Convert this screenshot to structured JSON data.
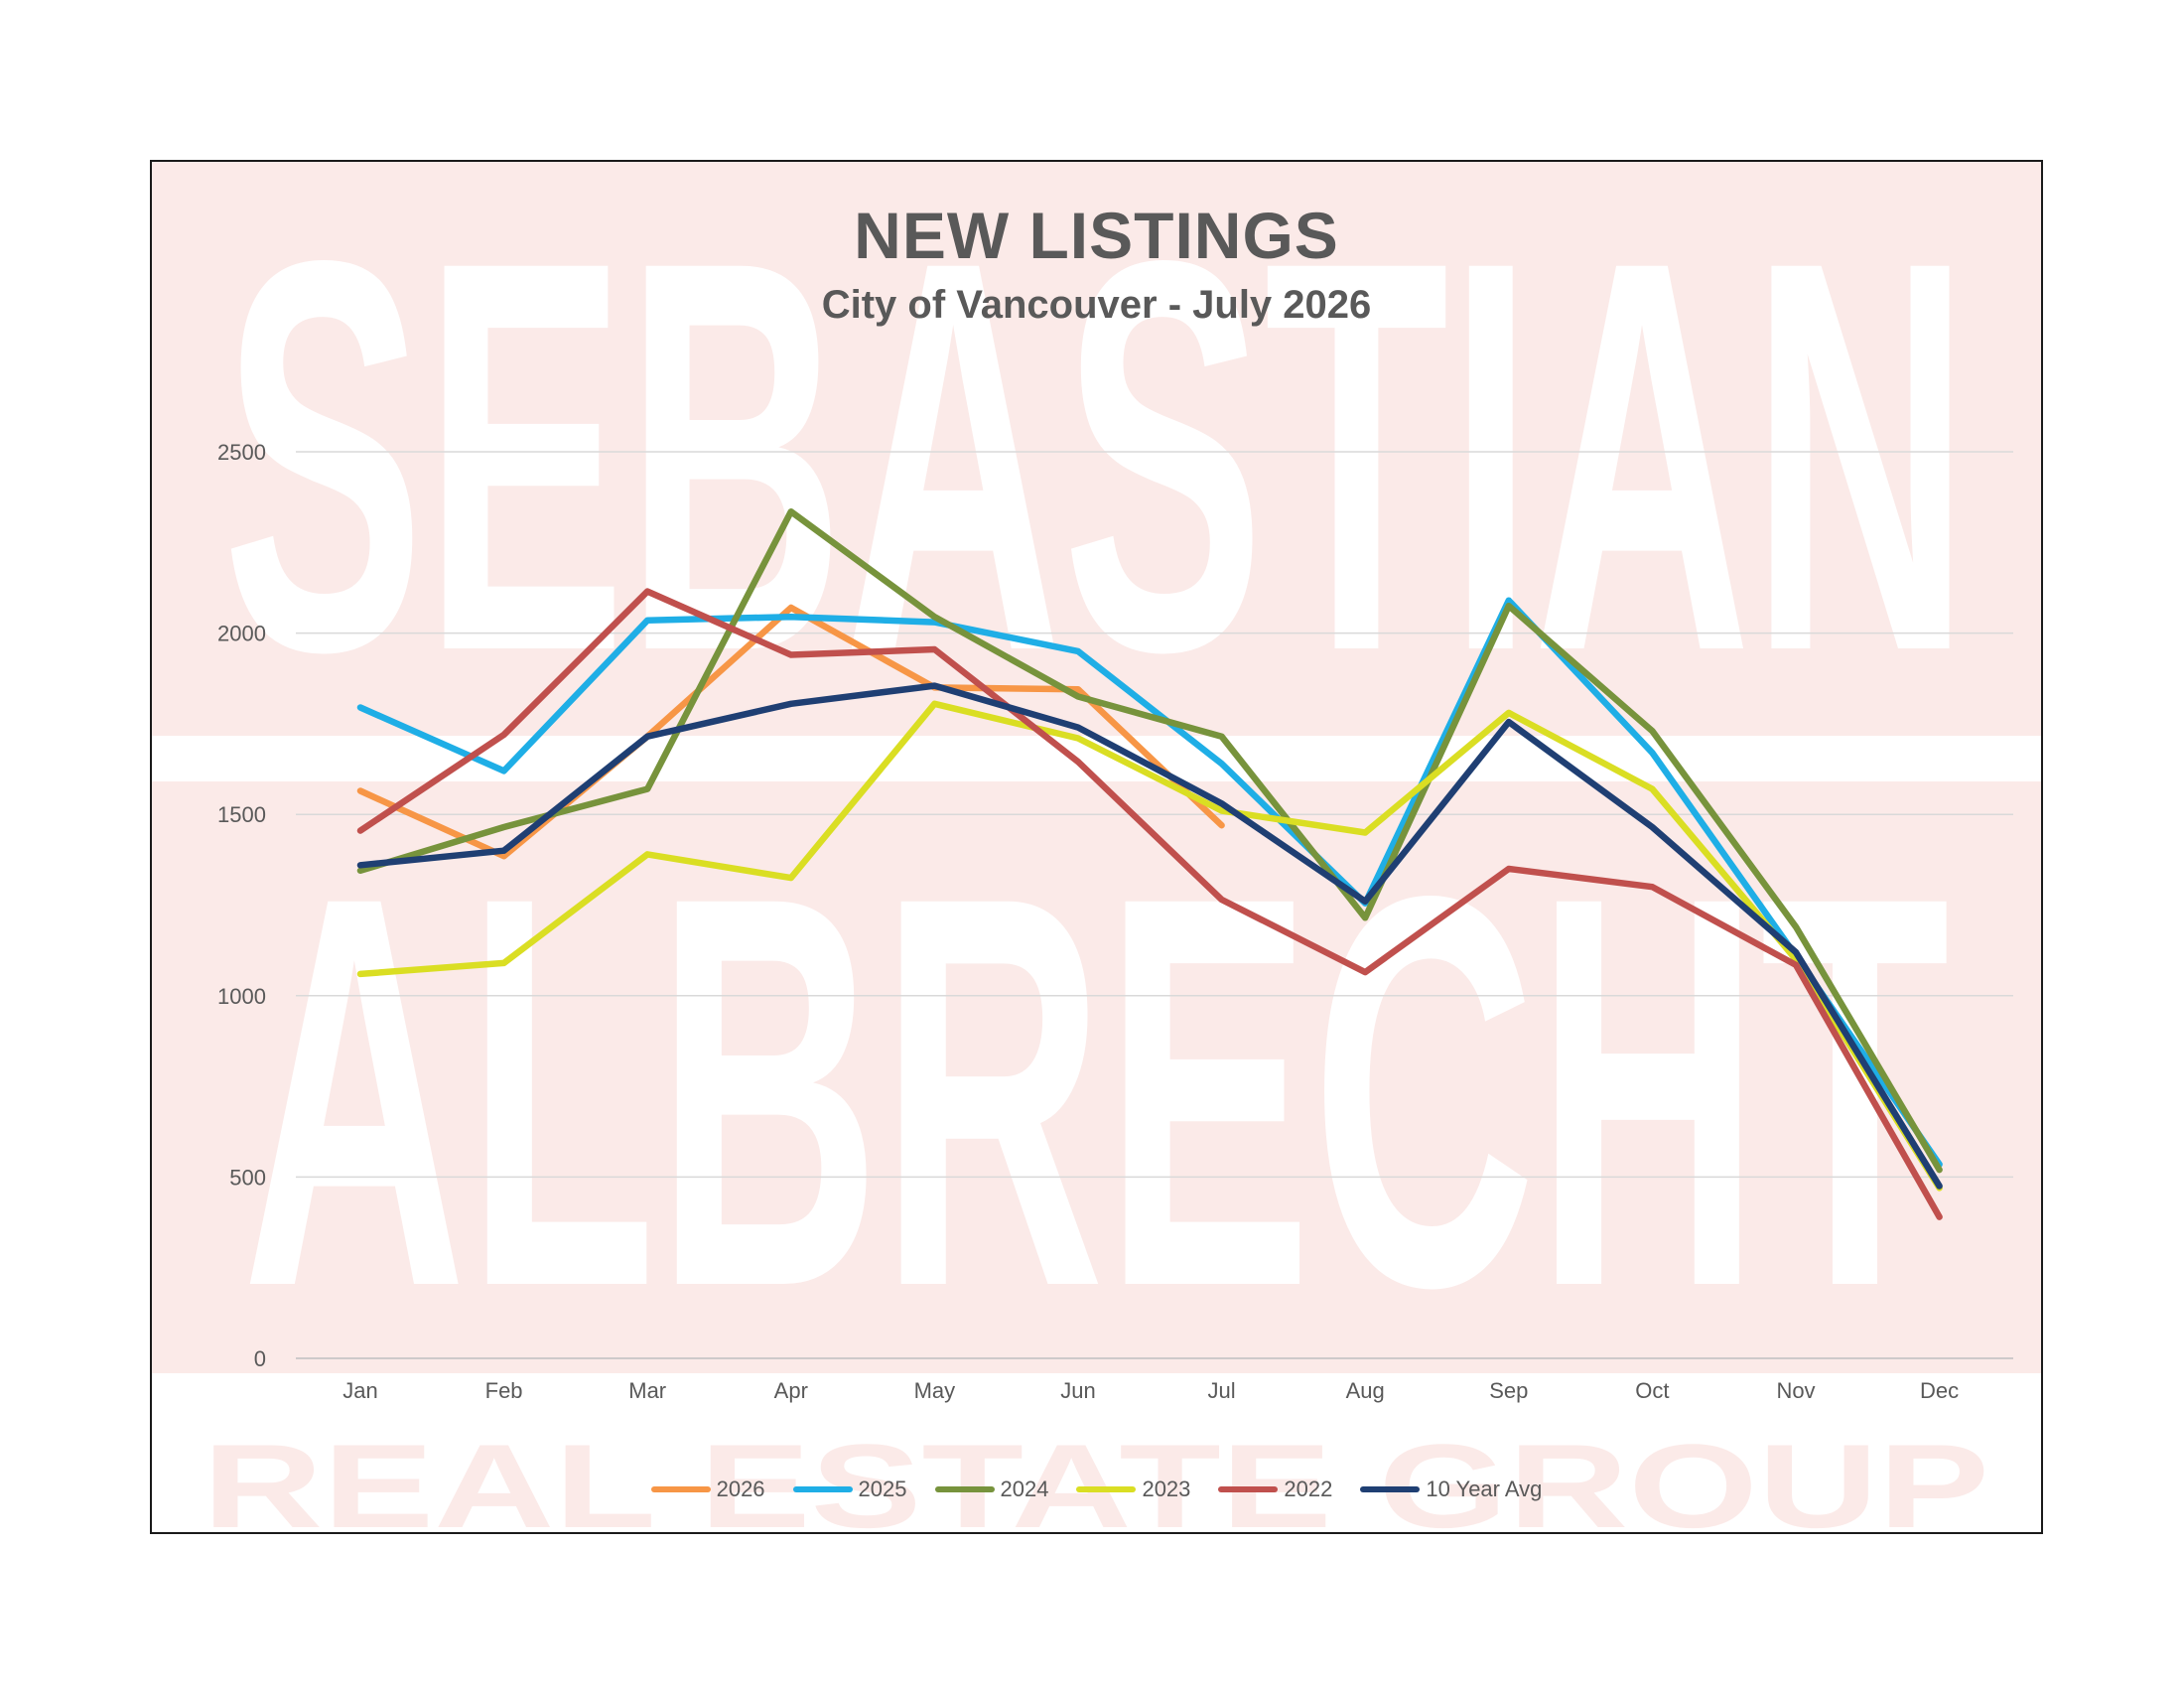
{
  "chart_data": {
    "type": "line",
    "title": "NEW LISTINGS",
    "subtitle": "City of Vancouver - July 2026",
    "watermark": [
      "SEBASTIAN",
      "ALBRECHT",
      "REAL ESTATE GROUP"
    ],
    "categories": [
      "Jan",
      "Feb",
      "Mar",
      "Apr",
      "May",
      "Jun",
      "Jul",
      "Aug",
      "Sep",
      "Oct",
      "Nov",
      "Dec"
    ],
    "ylim": [
      0,
      2500
    ],
    "yticks": [
      0,
      500,
      1000,
      1500,
      2000,
      2500
    ],
    "xlabel": "",
    "ylabel": "",
    "grid": true,
    "legend_position": "bottom",
    "series": [
      {
        "name": "2026",
        "color": "#F79646",
        "values": [
          1565,
          1385,
          1715,
          2070,
          1850,
          1845,
          1470,
          null,
          null,
          null,
          null,
          null
        ]
      },
      {
        "name": "2025",
        "color": "#1FAEE6",
        "values": [
          1795,
          1620,
          2035,
          2045,
          2030,
          1950,
          1640,
          1255,
          2090,
          1670,
          1110,
          535
        ]
      },
      {
        "name": "2024",
        "color": "#77933C",
        "values": [
          1345,
          1465,
          1570,
          2335,
          2045,
          1825,
          1715,
          1215,
          2075,
          1730,
          1190,
          520
        ]
      },
      {
        "name": "2023",
        "color": "#DADE23",
        "values": [
          1060,
          1090,
          1390,
          1325,
          1805,
          1710,
          1510,
          1450,
          1780,
          1570,
          1100,
          470
        ]
      },
      {
        "name": "2022",
        "color": "#C0504D",
        "values": [
          1455,
          1720,
          2115,
          1940,
          1955,
          1645,
          1265,
          1065,
          1350,
          1300,
          1085,
          390
        ]
      },
      {
        "name": "10 Year Avg",
        "color": "#1F3F73",
        "values": [
          1360,
          1400,
          1715,
          1805,
          1855,
          1740,
          1530,
          1260,
          1755,
          1465,
          1120,
          475
        ]
      }
    ]
  }
}
